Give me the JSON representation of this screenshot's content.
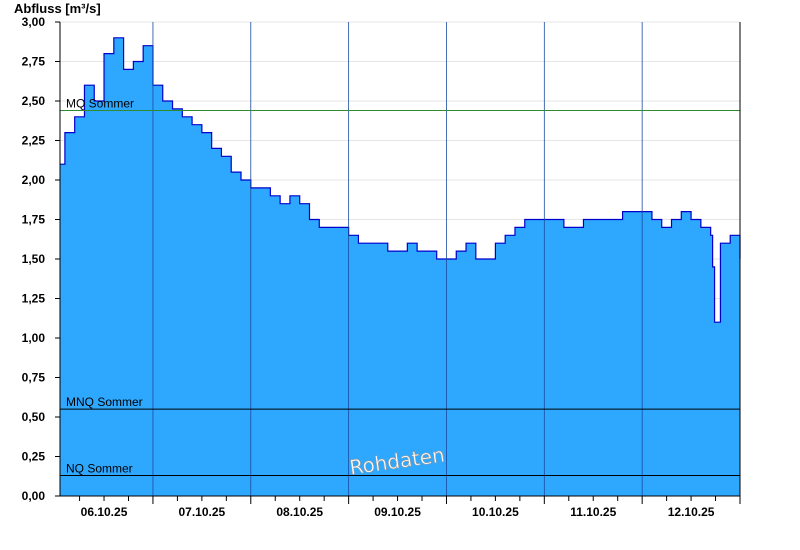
{
  "chart_data": {
    "type": "area",
    "ylabel": "Abfluss [m³/s]",
    "ylim": [
      0,
      3
    ],
    "yticks": [
      "0,00",
      "0,25",
      "0,50",
      "0,75",
      "1,00",
      "1,25",
      "1,50",
      "1,75",
      "2,00",
      "2,25",
      "2,50",
      "2,75",
      "3,00"
    ],
    "xticks": [
      "06.10.25",
      "07.10.25",
      "08.10.25",
      "09.10.25",
      "10.10.25",
      "11.10.25",
      "12.10.25"
    ],
    "x_start_day": 5.05,
    "x_end_day": 12.0,
    "grid": true,
    "fill_color": "#2ea8ff",
    "line_color": "#0000cc",
    "reference_lines": [
      {
        "label": "MQ Sommer",
        "value": 2.44,
        "color": "#2e8b2e"
      },
      {
        "label": "MNQ Sommer",
        "value": 0.55,
        "color": "#000000"
      },
      {
        "label": "NQ Sommer",
        "value": 0.13,
        "color": "#000000"
      }
    ],
    "watermark": "Rohdaten",
    "series": [
      {
        "x": [
          5.05,
          5.1,
          5.2,
          5.3,
          5.4,
          5.5,
          5.6,
          5.7,
          5.8,
          5.9,
          6.0,
          6.1,
          6.2,
          6.3,
          6.4,
          6.5,
          6.6,
          6.7,
          6.8,
          6.9,
          7.0,
          7.1,
          7.2,
          7.3,
          7.4,
          7.5,
          7.6,
          7.7,
          7.8,
          7.9,
          8.0,
          8.1,
          8.2,
          8.3,
          8.4,
          8.5,
          8.6,
          8.7,
          8.8,
          8.9,
          9.0,
          9.1,
          9.2,
          9.3,
          9.4,
          9.5,
          9.6,
          9.7,
          9.8,
          9.9,
          10.0,
          10.1,
          10.2,
          10.3,
          10.4,
          10.5,
          10.6,
          10.7,
          10.8,
          10.9,
          11.0,
          11.1,
          11.2,
          11.3,
          11.4,
          11.5,
          11.6,
          11.7,
          11.72,
          11.74,
          11.8,
          11.9,
          12.0
        ],
        "y": [
          2.1,
          2.3,
          2.4,
          2.6,
          2.5,
          2.8,
          2.9,
          2.7,
          2.75,
          2.85,
          2.6,
          2.5,
          2.45,
          2.4,
          2.35,
          2.3,
          2.2,
          2.15,
          2.05,
          2.0,
          1.95,
          1.95,
          1.9,
          1.85,
          1.9,
          1.85,
          1.75,
          1.7,
          1.7,
          1.7,
          1.65,
          1.6,
          1.6,
          1.6,
          1.55,
          1.55,
          1.6,
          1.55,
          1.55,
          1.5,
          1.5,
          1.55,
          1.6,
          1.5,
          1.5,
          1.6,
          1.65,
          1.7,
          1.75,
          1.75,
          1.75,
          1.75,
          1.7,
          1.7,
          1.75,
          1.75,
          1.75,
          1.75,
          1.8,
          1.8,
          1.8,
          1.75,
          1.7,
          1.75,
          1.8,
          1.75,
          1.7,
          1.65,
          1.45,
          1.1,
          1.6,
          1.65,
          1.5
        ]
      }
    ]
  }
}
